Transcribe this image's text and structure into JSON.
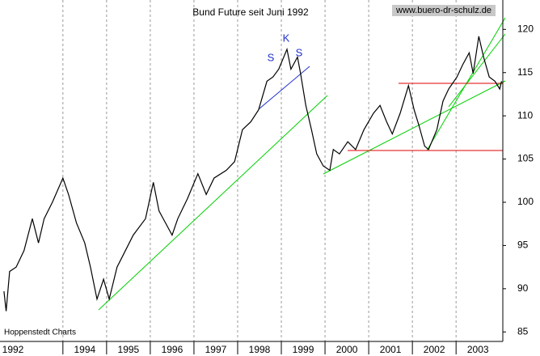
{
  "chart_data": {
    "type": "line",
    "title": "Bund Future seit Juni 1992",
    "source": "www.buero-dr-schulz.de",
    "credit": "Hoppenstedt Charts",
    "annotations": [
      "S",
      "K",
      "S"
    ],
    "x": [
      1992.65,
      1992.7,
      1992.78,
      1992.93,
      1993.11,
      1993.3,
      1993.44,
      1993.57,
      1993.76,
      1994.0,
      1994.13,
      1994.31,
      1994.5,
      1994.63,
      1994.78,
      1994.93,
      1995.06,
      1995.24,
      1995.43,
      1995.61,
      1995.89,
      1996.07,
      1996.2,
      1996.35,
      1996.5,
      1996.63,
      1996.85,
      1997.09,
      1997.28,
      1997.46,
      1997.74,
      1997.93,
      1998.11,
      1998.3,
      1998.48,
      1998.67,
      1998.81,
      1998.94,
      1999.13,
      1999.22,
      1999.37,
      1999.44,
      1999.56,
      1999.69,
      1999.81,
      1999.96,
      2000.11,
      2000.19,
      2000.33,
      2000.52,
      2000.7,
      2000.89,
      2001.11,
      2001.26,
      2001.41,
      2001.54,
      2001.72,
      2001.91,
      2002.04,
      2002.15,
      2002.28,
      2002.37,
      2002.56,
      2002.7,
      2002.83,
      2003.02,
      2003.15,
      2003.3,
      2003.39,
      2003.52,
      2003.63,
      2003.76,
      2003.89,
      2004.0,
      2004.04
    ],
    "series": [
      {
        "name": "Bund Future",
        "color": "#000000",
        "values": [
          89.7,
          87.4,
          92.0,
          92.5,
          94.4,
          98.1,
          95.3,
          98.1,
          100.0,
          102.8,
          100.9,
          97.6,
          95.3,
          92.5,
          88.8,
          91.1,
          88.8,
          92.5,
          94.4,
          96.2,
          98.1,
          102.3,
          99.0,
          97.6,
          96.2,
          98.1,
          100.4,
          103.3,
          100.9,
          102.8,
          103.7,
          104.7,
          108.4,
          109.3,
          110.7,
          114.0,
          114.5,
          115.4,
          117.7,
          115.4,
          116.8,
          114.9,
          111.2,
          108.4,
          105.6,
          104.2,
          103.7,
          106.1,
          105.6,
          107.0,
          106.1,
          108.4,
          110.3,
          111.2,
          109.3,
          107.9,
          110.3,
          113.5,
          110.7,
          108.9,
          106.5,
          106.1,
          108.4,
          111.7,
          113.1,
          114.5,
          115.9,
          117.3,
          114.9,
          119.2,
          116.8,
          114.5,
          114.0,
          113.1,
          114.0
        ]
      }
    ],
    "xlim": [
      1992.56,
      2004.07
    ],
    "ylim": [
      83.9,
      123.4
    ],
    "xticks": [
      1992,
      1994,
      1995,
      1996,
      1997,
      1998,
      1999,
      2000,
      2001,
      2002,
      2003
    ],
    "yticks": [
      85,
      90,
      95,
      100,
      105,
      110,
      115,
      120
    ],
    "grid": true,
    "legend": false
  }
}
